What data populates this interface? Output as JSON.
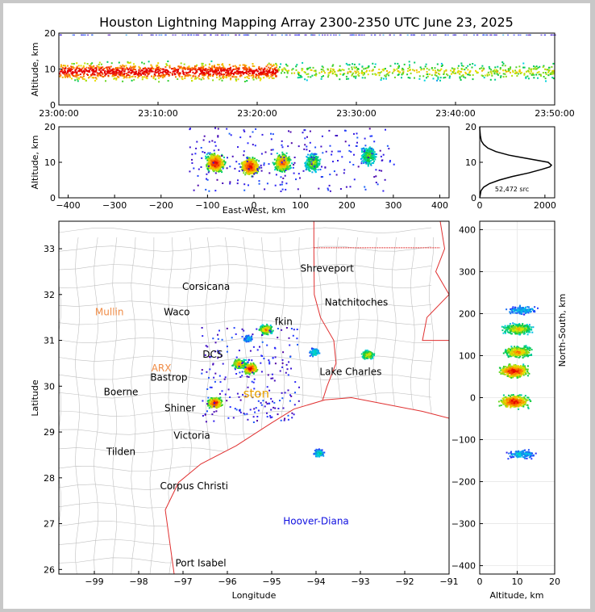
{
  "title": "Houston Lightning Mapping Array 2300-2350 UTC June 23, 2025",
  "colors": {
    "background": "#ffffff",
    "frame": "#c8c8c8",
    "state_lines": "#e03030",
    "county_lines": "#c0c0c0",
    "histogram": "#000000"
  },
  "chart_data": [
    {
      "type": "heatmap",
      "panel": "altitude-time",
      "ylabel": "Altitude, km",
      "x_ticks": [
        "23:00:00",
        "23:10:00",
        "23:20:00",
        "23:30:00",
        "23:40:00",
        "23:50:00"
      ],
      "xlim_minutes": [
        0,
        50
      ],
      "ylim": [
        0,
        20
      ],
      "y_ticks": [
        "0",
        "10",
        "20"
      ],
      "source_altitude_range_km": [
        3,
        15
      ],
      "peak_altitude_km": 9
    },
    {
      "type": "heatmap",
      "panel": "altitude-east-west",
      "xlabel": "East-West, km",
      "ylabel": "Altitude, km",
      "xlim": [
        -420,
        420
      ],
      "ylim": [
        0,
        20
      ],
      "x_ticks": [
        "−400",
        "−300",
        "−200",
        "−100",
        "0",
        "100",
        "200",
        "300",
        "400"
      ],
      "y_ticks": [
        "0",
        "10",
        "20"
      ],
      "clusters": [
        {
          "x": -85,
          "y": 10,
          "intensity": 1.0
        },
        {
          "x": -10,
          "y": 9,
          "intensity": 1.0
        },
        {
          "x": 60,
          "y": 10,
          "intensity": 0.85
        },
        {
          "x": 125,
          "y": 10,
          "intensity": 0.6
        },
        {
          "x": 245,
          "y": 12,
          "intensity": 0.55
        }
      ]
    },
    {
      "type": "line",
      "panel": "altitude-histogram",
      "xlim": [
        0,
        2300
      ],
      "ylim": [
        0,
        20
      ],
      "x_ticks": [
        "0",
        "2000"
      ],
      "y_ticks": [
        "0",
        "10",
        "20"
      ],
      "annotation": "52,472 src",
      "x": [
        0,
        40,
        120,
        300,
        600,
        1000,
        1500,
        1900,
        2150,
        2200,
        2100,
        1500,
        900,
        500,
        250,
        120,
        50,
        20,
        5,
        0
      ],
      "y": [
        0,
        2,
        3,
        4,
        5,
        6,
        7,
        8,
        8.7,
        9.2,
        10,
        11,
        12,
        13,
        14,
        15,
        16,
        17.5,
        19,
        20
      ]
    },
    {
      "type": "heatmap",
      "panel": "plan-view",
      "xlabel": "Longitude",
      "ylabel": "Latitude",
      "xlim": [
        -99.8,
        -91
      ],
      "ylim": [
        25.9,
        33.6
      ],
      "x_ticks": [
        "−99",
        "−98",
        "−97",
        "−96",
        "−95",
        "−94",
        "−93",
        "−92",
        "−91"
      ],
      "y_ticks": [
        "26",
        "27",
        "28",
        "29",
        "30",
        "31",
        "32",
        "33"
      ],
      "clusters": [
        {
          "lon": -95.5,
          "lat": 30.4,
          "intensity": 1.0
        },
        {
          "lon": -95.75,
          "lat": 30.5,
          "intensity": 0.8
        },
        {
          "lon": -96.3,
          "lat": 29.65,
          "intensity": 1.0
        },
        {
          "lon": -95.15,
          "lat": 31.25,
          "intensity": 0.8
        },
        {
          "lon": -92.85,
          "lat": 30.7,
          "intensity": 0.7
        },
        {
          "lon": -94.05,
          "lat": 30.75,
          "intensity": 0.4
        },
        {
          "lon": -93.95,
          "lat": 28.55,
          "intensity": 0.4
        },
        {
          "lon": -95.55,
          "lat": 31.05,
          "intensity": 0.3
        }
      ],
      "cities": [
        {
          "name": "Shreveport",
          "lon": -93.75,
          "lat": 32.5,
          "color": "#000000"
        },
        {
          "name": "Corsicana",
          "lon": -96.48,
          "lat": 32.1,
          "color": "#000000"
        },
        {
          "name": "Mullin",
          "lon": -98.66,
          "lat": 31.55,
          "color": "#f08c46"
        },
        {
          "name": "Waco",
          "lon": -97.14,
          "lat": 31.55,
          "color": "#000000"
        },
        {
          "name": "Natchitoches",
          "lon": -93.09,
          "lat": 31.76,
          "color": "#000000"
        },
        {
          "name": "fkin",
          "lon": -94.73,
          "lat": 31.34,
          "color": "#000000"
        },
        {
          "name": "DCS",
          "lon": -96.33,
          "lat": 30.62,
          "color": "#000000"
        },
        {
          "name": "ARX",
          "lon": -97.49,
          "lat": 30.32,
          "color": "#f08c46"
        },
        {
          "name": "Bastrop",
          "lon": -97.32,
          "lat": 30.12,
          "color": "#000000"
        },
        {
          "name": "Lake Charles",
          "lon": -93.22,
          "lat": 30.24,
          "color": "#000000"
        },
        {
          "name": "Boerne",
          "lon": -98.4,
          "lat": 29.8,
          "color": "#000000"
        },
        {
          "name": "ston",
          "lon": -95.35,
          "lat": 29.75,
          "color": "#e8a000"
        },
        {
          "name": "Shiner",
          "lon": -97.07,
          "lat": 29.45,
          "color": "#000000"
        },
        {
          "name": "Victoria",
          "lon": -96.8,
          "lat": 28.85,
          "color": "#000000"
        },
        {
          "name": "Tilden",
          "lon": -98.4,
          "lat": 28.5,
          "color": "#000000"
        },
        {
          "name": "Corpus Christi",
          "lon": -96.75,
          "lat": 27.75,
          "color": "#000000"
        },
        {
          "name": "Hoover-Diana",
          "lon": -94.0,
          "lat": 26.98,
          "color": "#1010e0"
        },
        {
          "name": "Port Isabel",
          "lon": -96.6,
          "lat": 26.07,
          "color": "#000000"
        }
      ]
    },
    {
      "type": "heatmap",
      "panel": "north-south-altitude",
      "xlabel": "Altitude, km",
      "ylabel": "North-South, km",
      "xlim": [
        0,
        20
      ],
      "ylim": [
        -420,
        420
      ],
      "x_ticks": [
        "0",
        "10",
        "20"
      ],
      "y_ticks": [
        "−400",
        "−300",
        "−200",
        "−100",
        "0",
        "100",
        "200",
        "300",
        "400"
      ],
      "clusters": [
        {
          "x": 10,
          "y": 165,
          "intensity": 0.7
        },
        {
          "x": 10,
          "y": 110,
          "intensity": 0.8
        },
        {
          "x": 9,
          "y": 65,
          "intensity": 1.0
        },
        {
          "x": 9,
          "y": -8,
          "intensity": 1.0
        },
        {
          "x": 11,
          "y": -133,
          "intensity": 0.3
        },
        {
          "x": 11,
          "y": 210,
          "intensity": 0.3
        }
      ]
    }
  ]
}
